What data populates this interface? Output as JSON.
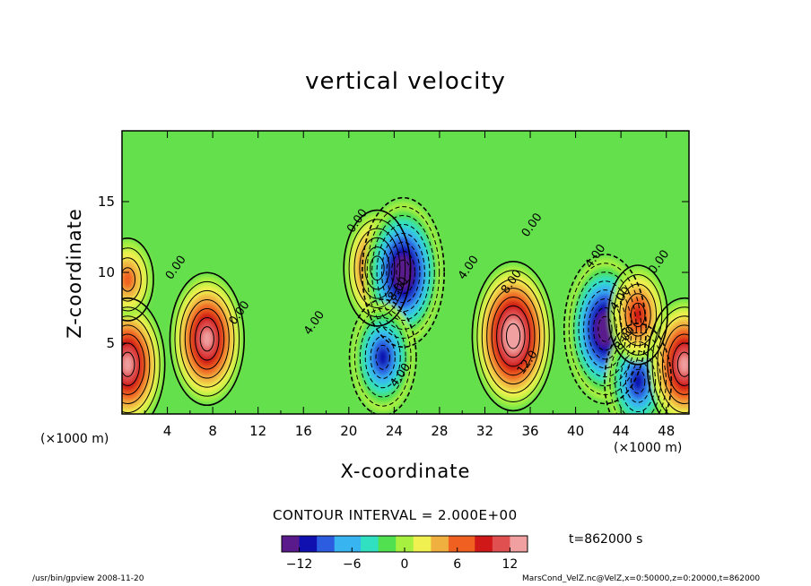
{
  "chart_data": {
    "type": "contour",
    "title": "vertical velocity",
    "xlabel": "X-coordinate",
    "ylabel": "Z-coordinate",
    "x_unit": "(×1000 m)",
    "y_unit": "(×1000 m)",
    "x_ticks": [
      4,
      8,
      12,
      16,
      20,
      24,
      28,
      32,
      36,
      40,
      44,
      48
    ],
    "y_ticks": [
      5,
      10,
      15
    ],
    "xlim": [
      0,
      50
    ],
    "ylim": [
      0,
      20
    ],
    "contour_interval": "CONTOUR INTERVAL = 2.000E+00",
    "colorbar": {
      "ticks": [
        -12,
        -6,
        0,
        6,
        12
      ],
      "range": [
        -14,
        14
      ],
      "colors": [
        "#5a1a8c",
        "#1010b0",
        "#2c5ce0",
        "#38b4f0",
        "#30e0c0",
        "#50e050",
        "#a8f040",
        "#f0f050",
        "#f0b040",
        "#f06020",
        "#d01818",
        "#e05050",
        "#f0a0a0"
      ]
    },
    "contour_labels": [
      {
        "text": "0.00",
        "x": 5.0,
        "z": 10.2
      },
      {
        "text": "0.00",
        "x": 10.6,
        "z": 7.0
      },
      {
        "text": "0.00",
        "x": 21.0,
        "z": 13.5
      },
      {
        "text": "4.00",
        "x": 17.2,
        "z": 6.3
      },
      {
        "text": "4.00",
        "x": 24.8,
        "z": 2.6
      },
      {
        "text": "8.00",
        "x": 24.6,
        "z": 8.7
      },
      {
        "text": "4.00",
        "x": 30.8,
        "z": 10.2
      },
      {
        "text": "8.00",
        "x": 34.6,
        "z": 9.2
      },
      {
        "text": "0.00",
        "x": 36.4,
        "z": 13.2
      },
      {
        "text": "12.0",
        "x": 36.0,
        "z": 3.5
      },
      {
        "text": "4.00",
        "x": 42.0,
        "z": 11.0
      },
      {
        "text": "4.00",
        "x": 44.2,
        "z": 8.0
      },
      {
        "text": "8.00",
        "x": 44.6,
        "z": 5.2
      },
      {
        "text": "0.00",
        "x": 47.6,
        "z": 10.6
      }
    ],
    "extrema": [
      {
        "sign": "positive",
        "x": 7.5,
        "z": 5.3,
        "value": 12
      },
      {
        "sign": "positive",
        "x": 22.5,
        "z": 10.3,
        "value": 10
      },
      {
        "sign": "negative",
        "x": 24.8,
        "z": 10.0,
        "value": -14
      },
      {
        "sign": "negative",
        "x": 23.0,
        "z": 4.0,
        "value": -10
      },
      {
        "sign": "positive",
        "x": 34.5,
        "z": 5.5,
        "value": 14
      },
      {
        "sign": "negative",
        "x": 42.6,
        "z": 6.0,
        "value": -14
      },
      {
        "sign": "negative",
        "x": 45.5,
        "z": 2.3,
        "value": -10
      },
      {
        "sign": "positive",
        "x": 45.5,
        "z": 7.0,
        "value": 8
      },
      {
        "sign": "positive",
        "x": 49.6,
        "z": 3.5,
        "value": 12
      },
      {
        "sign": "positive",
        "x": 0.5,
        "z": 3.5,
        "value": 12
      },
      {
        "sign": "positive",
        "x": 0.5,
        "z": 9.5,
        "value": 6
      }
    ]
  },
  "page": {
    "time_label": "t=862000 s",
    "footer_left": "/usr/bin/gpview  2008-11-20",
    "footer_right": "MarsCond_VelZ.nc@VelZ,x=0:50000,z=0:20000,t=862000"
  }
}
